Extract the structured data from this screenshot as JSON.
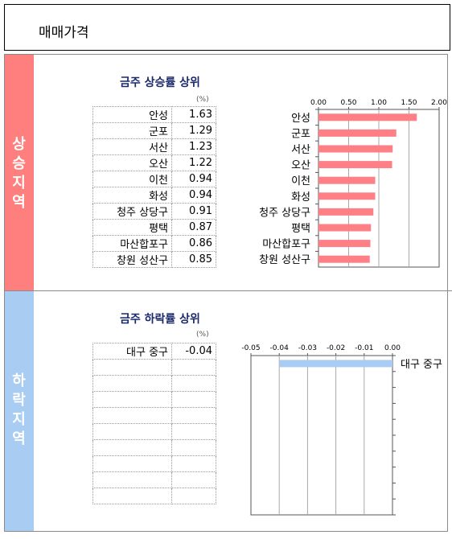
{
  "header": {
    "title": "매매가격"
  },
  "rising": {
    "side_label": "상승지역",
    "title": "금주 상승률 상위",
    "unit": "(%)",
    "side_color": "#ff7f7f"
  },
  "falling": {
    "side_label": "하락지역",
    "title": "금주 하락률 상위",
    "unit": "(%)",
    "side_color": "#a9ccf2"
  },
  "chart_data": [
    {
      "type": "bar",
      "orientation": "horizontal",
      "categories": [
        "안성",
        "군포",
        "서산",
        "오산",
        "이천",
        "화성",
        "청주 상당구",
        "평택",
        "마산합포구",
        "창원 성산구"
      ],
      "values": [
        1.63,
        1.29,
        1.23,
        1.22,
        0.94,
        0.94,
        0.91,
        0.87,
        0.86,
        0.85
      ],
      "value_labels": [
        "1.63",
        "1.29",
        "1.23",
        "1.22",
        "0.94",
        "0.94",
        "0.91",
        "0.87",
        "0.86",
        "0.85"
      ],
      "tick_labels": [
        "0.00",
        "0.50",
        "1.00",
        "1.50",
        "2.00"
      ],
      "xlim": [
        0,
        2
      ],
      "axis_position": "top",
      "grid": true,
      "bar_color": "#ff7f86"
    },
    {
      "type": "bar",
      "orientation": "horizontal",
      "categories": [
        "대구 중구"
      ],
      "values": [
        -0.04
      ],
      "value_labels": [
        "-0.04"
      ],
      "tick_labels": [
        "-0.05",
        "-0.04",
        "-0.03",
        "-0.02",
        "-0.01",
        "0.00"
      ],
      "xlim": [
        -0.05,
        0
      ],
      "axis_position": "top",
      "grid": true,
      "bar_color": "#a9ccf2",
      "empty_rows": 9
    }
  ]
}
